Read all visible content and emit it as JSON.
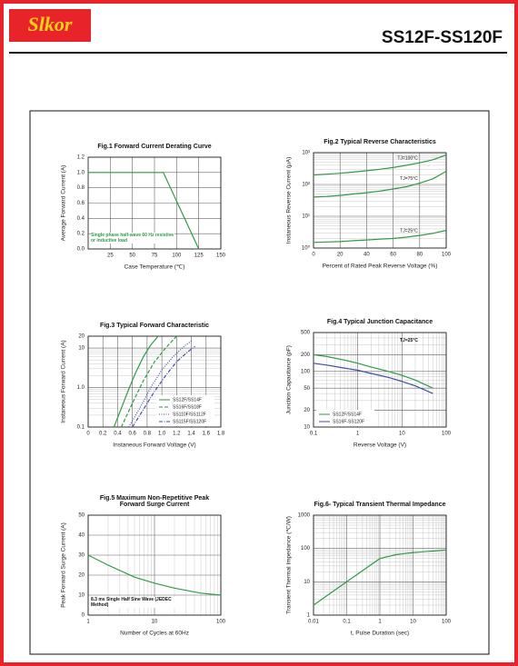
{
  "header": {
    "logo": "Slkor",
    "part_number": "SS12F-SS120F"
  },
  "chart_data": [
    {
      "type": "line",
      "title": "Fig.1  Forward Current Derating Curve",
      "y_label": "Average Forward Current (A)",
      "x_label": "Case Temperature (℃)",
      "xlim": [
        0,
        150
      ],
      "xticks": [
        25,
        50,
        75,
        100,
        125,
        150
      ],
      "ylim": [
        0,
        1.2
      ],
      "yticks": [
        {
          "value": 0,
          "label": "0.0"
        },
        {
          "value": 0.2,
          "label": "0.2"
        },
        {
          "value": 0.4,
          "label": "0.4"
        },
        {
          "value": 0.6,
          "label": "0.6"
        },
        {
          "value": 0.8,
          "label": "0.8"
        },
        {
          "value": 1,
          "label": "1.0"
        },
        {
          "value": 1.2,
          "label": "1.2"
        }
      ],
      "grid": true,
      "annotation": "Single phase half-wave 60 Hz resistive or inductive load",
      "series": [
        {
          "color": "#2f9a47",
          "dash": "solid",
          "x": [
            0,
            85,
            125
          ],
          "values": [
            1,
            1,
            0
          ]
        }
      ]
    },
    {
      "type": "line",
      "title": "Fig.2  Typical Reverse Characteristics",
      "y_label": "Instaneous Reverse Current (μA)",
      "x_label": "Percent of Rated Peak Reverse Voltage (%)",
      "xlim": [
        0,
        100
      ],
      "xticks": [
        0,
        20,
        40,
        60,
        80,
        100
      ],
      "ylim": [
        1,
        1000
      ],
      "yscale": "log",
      "yticks": [
        {
          "value": 1,
          "label": "10⁰"
        },
        {
          "value": 10,
          "label": "10¹"
        },
        {
          "value": 100,
          "label": "10²"
        },
        {
          "value": 1000,
          "label": "10³"
        }
      ],
      "grid": true,
      "legend": "inline",
      "series": [
        {
          "name": "TJ=100°C",
          "color": "#2f9a47",
          "dash": "solid",
          "x": [
            0,
            10,
            20,
            30,
            40,
            50,
            60,
            70,
            80,
            90,
            100
          ],
          "values": [
            200,
            210,
            225,
            245,
            270,
            300,
            340,
            400,
            480,
            600,
            850
          ]
        },
        {
          "name": "TJ=75°C",
          "color": "#2f9a47",
          "dash": "solid",
          "x": [
            0,
            10,
            20,
            30,
            40,
            50,
            60,
            70,
            80,
            90,
            100
          ],
          "values": [
            40,
            42,
            45,
            50,
            55,
            62,
            72,
            85,
            110,
            150,
            260
          ]
        },
        {
          "name": "TJ=25°C",
          "color": "#2f9a47",
          "dash": "solid",
          "x": [
            0,
            10,
            20,
            30,
            40,
            50,
            60,
            70,
            80,
            90,
            100
          ],
          "values": [
            1.5,
            1.55,
            1.6,
            1.7,
            1.8,
            1.9,
            2,
            2.2,
            2.5,
            2.9,
            3.6
          ]
        }
      ]
    },
    {
      "type": "line",
      "title": "Fig.3  Typical Forward Characteristic",
      "y_label": "Instaneous Forward Current (A)",
      "x_label": "Instaneous Forward Voltage (V)",
      "xlim": [
        0,
        1.8
      ],
      "xticks": [
        0,
        0.2,
        0.4,
        0.6,
        0.8,
        {
          "value": 1,
          "label": "1.0"
        },
        1.2,
        1.4,
        1.6,
        1.8
      ],
      "ylim": [
        0.1,
        20
      ],
      "yscale": "log",
      "yticks": [
        0.1,
        {
          "value": 1,
          "label": "1.0"
        },
        10,
        20
      ],
      "grid": true,
      "legend": "lower right",
      "series": [
        {
          "name": "SS12F/SS14F",
          "color": "#2f9a47",
          "dash": "solid",
          "x": [
            0.35,
            0.45,
            0.55,
            0.65,
            0.75,
            0.85,
            0.95
          ],
          "values": [
            0.1,
            0.3,
            0.9,
            2.5,
            6,
            12,
            20
          ]
        },
        {
          "name": "SS16F/SS18F",
          "color": "#2f9a47",
          "dash": "dashed",
          "x": [
            0.45,
            0.6,
            0.75,
            0.9,
            1.05,
            1.2
          ],
          "values": [
            0.1,
            0.4,
            1.5,
            4.5,
            10,
            20
          ]
        },
        {
          "name": "SS110F/SS112F",
          "color": "#3b4fa3",
          "dash": "dotted",
          "x": [
            0.55,
            0.7,
            0.85,
            1,
            1.15,
            1.3,
            1.4
          ],
          "values": [
            0.1,
            0.3,
            1,
            2.8,
            6,
            11,
            15
          ]
        },
        {
          "name": "SS115F/SS120F",
          "color": "#3b4fa3",
          "dash": "dashdot",
          "x": [
            0.6,
            0.75,
            0.9,
            1.05,
            1.2,
            1.35,
            1.45
          ],
          "values": [
            0.1,
            0.28,
            0.8,
            2,
            4.5,
            8,
            11
          ]
        }
      ]
    },
    {
      "type": "line",
      "title": "Fig.4  Typical Junction Capacitance",
      "y_label": "Junction Capacitance (pF)",
      "x_label": "Reverse  Voltage (V)",
      "xlim": [
        0.1,
        100
      ],
      "xscale": "log",
      "xticks": [
        0.1,
        1,
        10,
        100
      ],
      "ylim": [
        10,
        500
      ],
      "yscale": "log",
      "yticks": [
        10,
        20,
        50,
        100,
        200,
        500
      ],
      "grid": true,
      "legend": "lower left",
      "annotation": "TJ=25°C",
      "series": [
        {
          "name": "SS12F/SS14F",
          "color": "#2f9a47",
          "dash": "solid",
          "x": [
            0.1,
            0.2,
            0.5,
            1,
            2,
            5,
            10,
            20,
            50
          ],
          "values": [
            200,
            185,
            160,
            140,
            120,
            100,
            85,
            70,
            50
          ]
        },
        {
          "name": "SS16F-SS120F",
          "color": "#3b4fa3",
          "dash": "solid",
          "x": [
            0.1,
            0.2,
            0.5,
            1,
            2,
            5,
            10,
            20,
            50
          ],
          "values": [
            140,
            130,
            115,
            105,
            92,
            78,
            66,
            55,
            40
          ]
        }
      ]
    },
    {
      "type": "line",
      "title": "Fig.5  Maximum Non-Repetitive Peak Forward Surge Current",
      "y_label": "Peak Forward Surge Current (A)",
      "x_label": "Number of Cycles at 60Hz",
      "xlim": [
        1,
        100
      ],
      "xscale": "log",
      "xticks": [
        1,
        10,
        100
      ],
      "ylim": [
        0,
        50
      ],
      "yticks": [
        0,
        10,
        20,
        30,
        40,
        50
      ],
      "grid": true,
      "annotation": "8.3 ms Single Half Sine Wave (JEDEC Method)",
      "series": [
        {
          "color": "#2f9a47",
          "dash": "solid",
          "x": [
            1,
            2,
            5,
            10,
            20,
            50,
            100
          ],
          "values": [
            30,
            25,
            19,
            16,
            13.5,
            11,
            10
          ]
        }
      ]
    },
    {
      "type": "line",
      "title": "Fig.6- Typical Transient Thermal Impedance",
      "y_label": "Transient Thermal Impedance (℃/W)",
      "x_label": "t, Pulse Duration (sec)",
      "xlim": [
        0.01,
        100
      ],
      "xscale": "log",
      "xticks": [
        0.01,
        0.1,
        1,
        10,
        100
      ],
      "ylim": [
        1,
        1000
      ],
      "yscale": "log",
      "yticks": [
        1,
        10,
        100,
        1000
      ],
      "grid": true,
      "series": [
        {
          "color": "#2f9a47",
          "dash": "solid",
          "x": [
            0.01,
            0.1,
            1,
            3,
            10,
            100
          ],
          "values": [
            2,
            10,
            50,
            65,
            75,
            90
          ]
        }
      ]
    }
  ]
}
